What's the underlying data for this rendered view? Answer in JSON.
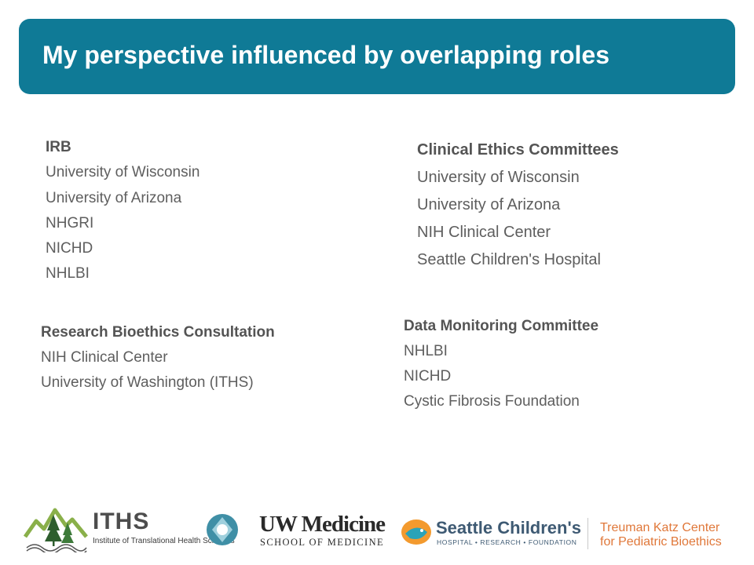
{
  "title": "My perspective influenced by overlapping roles",
  "sections": {
    "irb": {
      "heading": "IRB",
      "items": [
        "University of Wisconsin",
        "University of Arizona",
        "NHGRI",
        "NICHD",
        "NHLBI"
      ]
    },
    "ethics": {
      "heading": "Clinical Ethics Committees",
      "items": [
        "University of Wisconsin",
        "University of Arizona",
        "NIH Clinical Center",
        "Seattle Children's Hospital"
      ]
    },
    "consult": {
      "heading": "Research Bioethics Consultation",
      "items": [
        "NIH Clinical Center",
        "University of Washington (ITHS)"
      ]
    },
    "dmc": {
      "heading": "Data Monitoring Committee",
      "items": [
        "NHLBI",
        "NICHD",
        "Cystic Fibrosis Foundation"
      ]
    }
  },
  "logos": {
    "iths_name": "ITHS",
    "iths_full": "Institute of Translational Health Sciences",
    "uw_name": "UW Medicine",
    "uw_school": "SCHOOL OF MEDICINE",
    "sc_name": "Seattle Children's",
    "sc_tagline": "HOSPITAL • RESEARCH • FOUNDATION",
    "tk_line1": "Treuman Katz Center",
    "tk_line2": "for Pediatric Bioethics"
  },
  "colors": {
    "title_bar": "#0f7a96",
    "text": "#5a5a5a",
    "accent_orange": "#e0783a",
    "sc_blue": "#3e5a73"
  }
}
